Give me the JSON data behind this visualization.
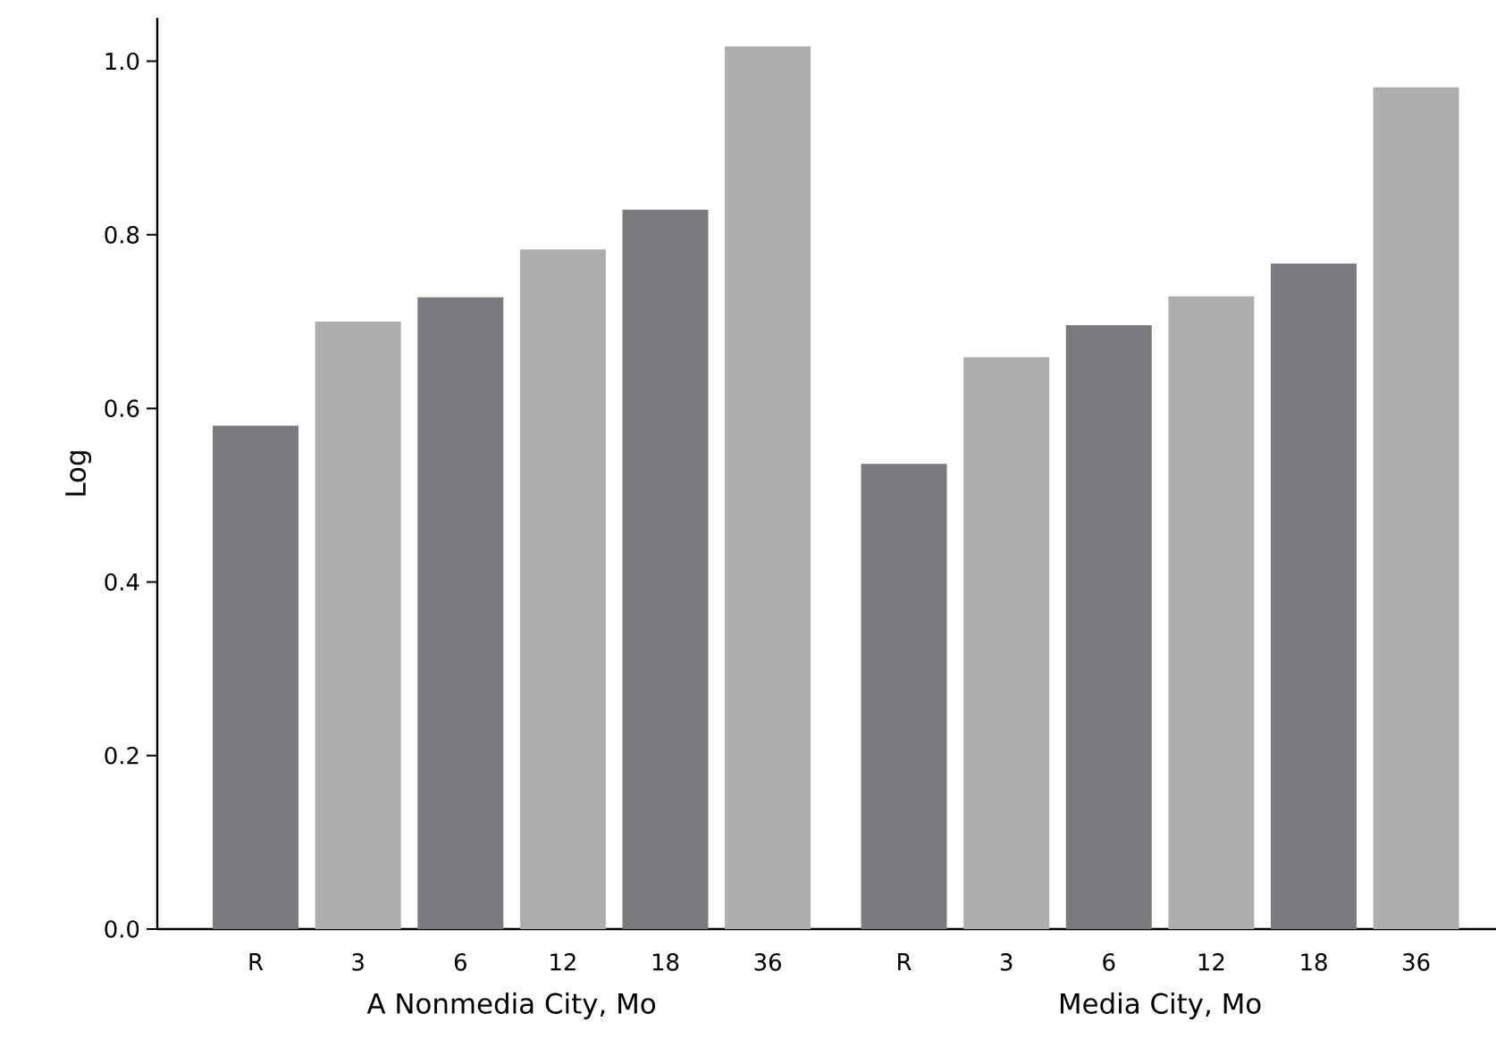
{
  "chart_data": {
    "type": "bar",
    "ylabel": "Log",
    "categories": [
      "R",
      "3",
      "6",
      "12",
      "18",
      "36",
      "R",
      "3",
      "6",
      "12",
      "18",
      "36"
    ],
    "values": [
      0.58,
      0.7,
      0.728,
      0.783,
      0.829,
      1.017,
      0.536,
      0.659,
      0.696,
      0.729,
      0.767,
      0.97
    ],
    "colors": [
      "#7a7b7f",
      "#adaeb0",
      "#7a7b7f",
      "#adaeb0",
      "#7a7b7f",
      "#adaeb0",
      "#7a7b7f",
      "#adaeb0",
      "#7a7b7f",
      "#adaeb0",
      "#7a7b7f",
      "#adaeb0"
    ],
    "ylim": [
      0,
      1.05
    ],
    "yticks": [
      {
        "value": 0,
        "label": "0.0"
      },
      0.2,
      0.4,
      0.6,
      0.8,
      {
        "value": 1,
        "label": "1.0"
      }
    ],
    "annotations": [
      "A Nonmedia City, Mo",
      "Media City, Mo"
    ]
  }
}
